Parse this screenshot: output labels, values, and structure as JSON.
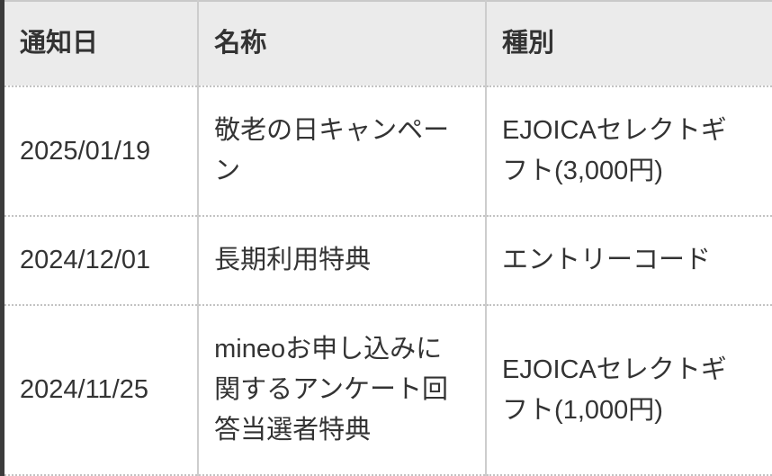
{
  "table": {
    "headers": [
      "通知日",
      "名称",
      "種別"
    ],
    "rows": [
      {
        "date": "2025/01/19",
        "name": "敬老の日キャンペー\nン",
        "type": "EJOICAセレクトギ\nフト(3,000円)"
      },
      {
        "date": "2024/12/01",
        "name": "長期利用特典",
        "type": "エントリーコード"
      },
      {
        "date": "2024/11/25",
        "name": "mineoお申し込みに\n関するアンケート回\n答当選者特典",
        "type": "EJOICAセレクトギ\nフト(1,000円)"
      }
    ]
  },
  "colors": {
    "header_background": "#ebebeb",
    "left_accent_border": "#3b3b3b",
    "column_divider": "#cdcdcd",
    "row_divider_dotted": "#c3c3c3",
    "top_border": "#c9c9c9",
    "text": "#333333",
    "body_background": "#ffffff"
  }
}
